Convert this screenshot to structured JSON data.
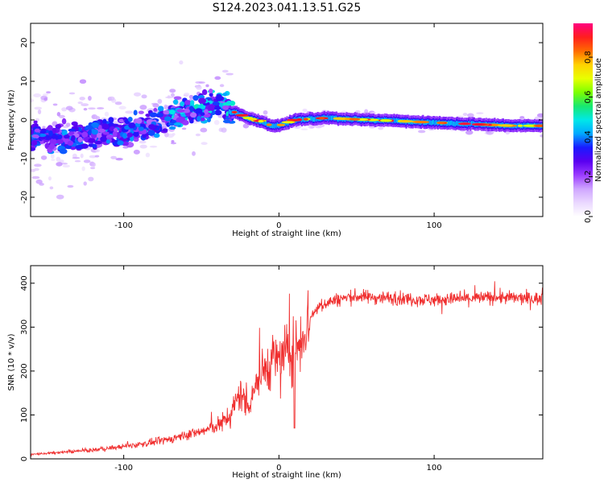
{
  "title": "S124.2023.041.13.51.G25",
  "chart_data": [
    {
      "type": "heatmap",
      "xlabel": "Height of straight line (km)",
      "ylabel": "Frequency (Hz)",
      "xlim": [
        -160,
        170
      ],
      "ylim": [
        -25,
        25
      ],
      "xticks": [
        -100,
        0,
        100
      ],
      "yticks": [
        -20,
        -10,
        0,
        10,
        20
      ],
      "colorbar": {
        "label": "Normalized spectral amplitude",
        "range": [
          0.0,
          0.97
        ],
        "ticks": [
          0.0,
          0.2,
          0.4,
          0.6,
          0.8
        ],
        "tick_labels": [
          "0.0",
          "0.2",
          "0.4",
          "0.6",
          "0.8"
        ],
        "colors": [
          "#ffffff",
          "#ead8ff",
          "#cfa6ff",
          "#9b3cff",
          "#5a00f0",
          "#1a1aff",
          "#00a8ff",
          "#00e8e8",
          "#18e870",
          "#7cff00",
          "#e8ff00",
          "#ffd200",
          "#ff6a00",
          "#ff1e1e",
          "#ff0080"
        ]
      },
      "ridge": {
        "x": [
          -160,
          -140,
          -120,
          -100,
          -80,
          -60,
          -45,
          -38,
          -33,
          -28,
          -20,
          -10,
          -5,
          0,
          10,
          30,
          60,
          90,
          120,
          150,
          170
        ],
        "y": [
          -4.5,
          -4.5,
          -4,
          -3,
          -1,
          2,
          4,
          5,
          2,
          2,
          0.5,
          -0.5,
          -1.5,
          -1.5,
          0,
          0.5,
          0,
          -0.5,
          -1,
          -1.5,
          -1.5
        ]
      },
      "grid": false
    },
    {
      "type": "line",
      "xlabel": "Height of straight line (km)",
      "ylabel": "SNR (10 * v/v)",
      "xlim": [
        -160,
        170
      ],
      "ylim": [
        0,
        440
      ],
      "xticks": [
        -100,
        0,
        100
      ],
      "yticks": [
        0,
        100,
        200,
        300,
        400
      ],
      "color": "#f03030",
      "series": [
        {
          "x": [
            -160,
            -140,
            -120,
            -100,
            -80,
            -70,
            -60,
            -50,
            -40,
            -35,
            -30,
            -25,
            -20,
            -15,
            -10,
            -5,
            0,
            5,
            10,
            15,
            20,
            25,
            30,
            40,
            50,
            60,
            80,
            100,
            120,
            140,
            160,
            170
          ],
          "y": [
            10,
            15,
            20,
            28,
            38,
            45,
            55,
            62,
            75,
            85,
            110,
            150,
            120,
            170,
            200,
            220,
            230,
            240,
            250,
            280,
            320,
            345,
            355,
            365,
            370,
            368,
            365,
            362,
            365,
            368,
            365,
            365
          ]
        }
      ],
      "grid": false
    }
  ]
}
